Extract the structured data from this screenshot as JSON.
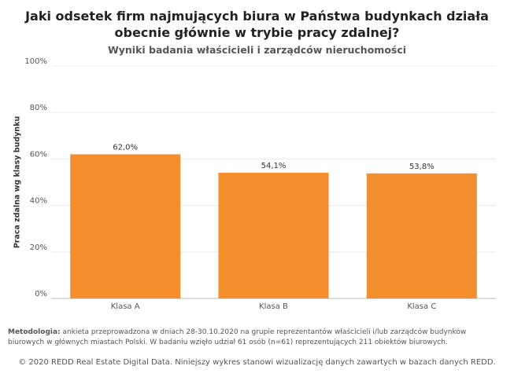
{
  "chart_data": {
    "type": "bar",
    "title": "Jaki odsetek firm najmujących biura w Państwa budynkach działa obecnie głównie w trybie pracy zdalnej?",
    "subtitle": "Wyniki badania właścicieli i zarządców nieruchomości",
    "y_label": "Praca zdalna wg klasy budynku",
    "categories": [
      "Klasa A",
      "Klasa B",
      "Klasa C"
    ],
    "values": [
      62.0,
      54.1,
      53.8
    ],
    "value_labels": [
      "62,0%",
      "54,1%",
      "53,8%"
    ],
    "color": "#f28e2b",
    "ylim": [
      0,
      100
    ],
    "yticks": [
      {
        "value": 0,
        "label": "0%"
      },
      {
        "value": 20,
        "label": "20%"
      },
      {
        "value": 40,
        "label": "40%"
      },
      {
        "value": 60,
        "label": "60%"
      },
      {
        "value": 80,
        "label": "80%"
      },
      {
        "value": 100,
        "label": "100%"
      }
    ],
    "grid": true
  },
  "notes": {
    "methodology_label": "Metodologia:",
    "methodology_text": "ankieta przeprowadzona w dniach 28-30.10.2020 na grupie reprezentantów właścicieli i/lub zarządców budynków biurowych w głównych miastach Polski. W badaniu wzięło udział 61 osób (n=61) reprezentujących 211 obiektów biurowych.",
    "copyright": "© 2020 REDD Real Estate Digital Data. Niniejszy wykres stanowi wizualizację danych zawartych w bazach danych REDD."
  }
}
